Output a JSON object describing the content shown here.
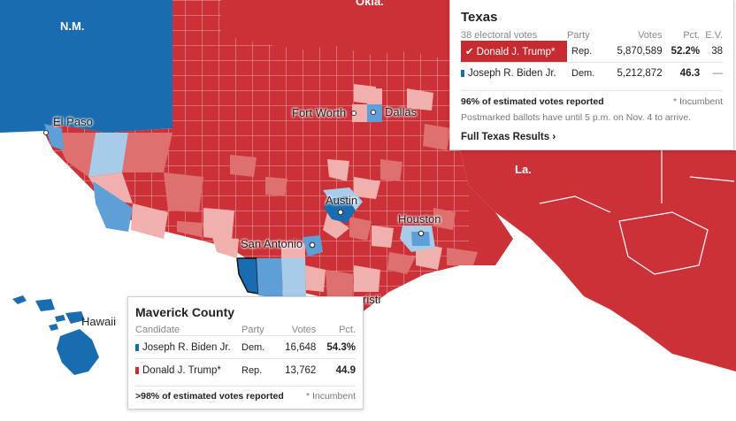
{
  "map": {
    "colors": {
      "rep_strong": "#cc3138",
      "rep_mid": "#df7070",
      "rep_light": "#efb0ae",
      "dem_strong": "#1a6cb0",
      "dem_mid": "#5d9fd6",
      "dem_light": "#a8cce8",
      "border": "#ffffff"
    },
    "labels": {
      "nm": "N.M.",
      "okla": "Okla.",
      "la": "La.",
      "hawaii": "Hawaii",
      "el_paso": "El Paso",
      "fort_worth": "Fort Worth",
      "dallas": "Dallas",
      "austin": "Austin",
      "houston": "Houston",
      "san_antonio": "San Antonio",
      "corpus": "risti"
    }
  },
  "state_tooltip": {
    "title": "Texas",
    "subtitle": "38 electoral votes",
    "headers": {
      "party": "Party",
      "votes": "Votes",
      "pct": "Pct.",
      "ev": "E.V."
    },
    "rows": [
      {
        "candidate": "Donald J. Trump*",
        "party": "Rep.",
        "votes": "5,870,589",
        "pct": "52.2%",
        "ev": "38",
        "winner": true,
        "color": "#c52b30"
      },
      {
        "candidate": "Joseph R. Biden Jr.",
        "party": "Dem.",
        "votes": "5,212,872",
        "pct": "46.3",
        "ev": "—",
        "winner": false,
        "color": "#1a6cb0"
      }
    ],
    "reported": "96% of estimated votes reported",
    "incumbent": "* Incumbent",
    "note": "Postmarked ballots have until 5 p.m. on Nov. 4 to arrive.",
    "link": "Full Texas Results ›",
    "check": "✔"
  },
  "county_tooltip": {
    "title": "Maverick County",
    "headers": {
      "candidate": "Candidate",
      "party": "Party",
      "votes": "Votes",
      "pct": "Pct."
    },
    "rows": [
      {
        "candidate": "Joseph R. Biden Jr.",
        "party": "Dem.",
        "votes": "16,648",
        "pct": "54.3%",
        "color": "#1a6cb0"
      },
      {
        "candidate": "Donald J. Trump*",
        "party": "Rep.",
        "votes": "13,762",
        "pct": "44.9",
        "color": "#c52b30"
      }
    ],
    "reported": ">98% of estimated votes reported",
    "incumbent": "* Incumbent"
  }
}
